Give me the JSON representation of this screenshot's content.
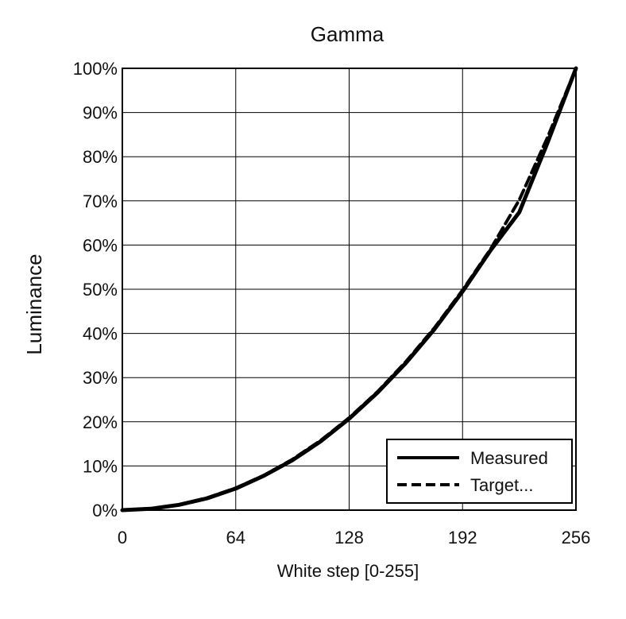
{
  "chart_data": {
    "type": "line",
    "title": "Gamma",
    "xlabel": "White step [0-255]",
    "ylabel": "Luminance",
    "xlim": [
      0,
      256
    ],
    "ylim": [
      0,
      100
    ],
    "x_ticks": [
      0,
      64,
      128,
      192,
      256
    ],
    "x_tick_labels": [
      "0",
      "64",
      "128",
      "192",
      "256"
    ],
    "y_ticks": [
      0,
      10,
      20,
      30,
      40,
      50,
      60,
      70,
      80,
      90,
      100
    ],
    "y_tick_labels": [
      "0%",
      "10%",
      "20%",
      "30%",
      "40%",
      "50%",
      "60%",
      "70%",
      "80%",
      "90%",
      "100%"
    ],
    "grid": true,
    "legend_position": "bottom-right",
    "series": [
      {
        "name": "Measured",
        "style": "solid",
        "color": "#000000",
        "x": [
          0,
          16,
          32,
          48,
          64,
          80,
          96,
          112,
          128,
          144,
          160,
          176,
          192,
          208,
          224,
          240,
          256
        ],
        "y": [
          0,
          0.3,
          1.2,
          2.7,
          4.9,
          7.8,
          11.3,
          15.6,
          20.7,
          26.6,
          33.3,
          40.9,
          49.5,
          58.9,
          67.4,
          83.2,
          100
        ]
      },
      {
        "name": "Target...",
        "style": "dashed",
        "color": "#000000",
        "x": [
          0,
          16,
          32,
          48,
          64,
          80,
          96,
          112,
          128,
          144,
          160,
          176,
          192,
          208,
          224,
          240,
          256
        ],
        "y": [
          0,
          0.3,
          1.2,
          2.8,
          5.0,
          7.9,
          11.5,
          15.8,
          20.9,
          26.8,
          33.6,
          41.2,
          49.8,
          59.2,
          70.2,
          84.4,
          100
        ]
      }
    ]
  }
}
